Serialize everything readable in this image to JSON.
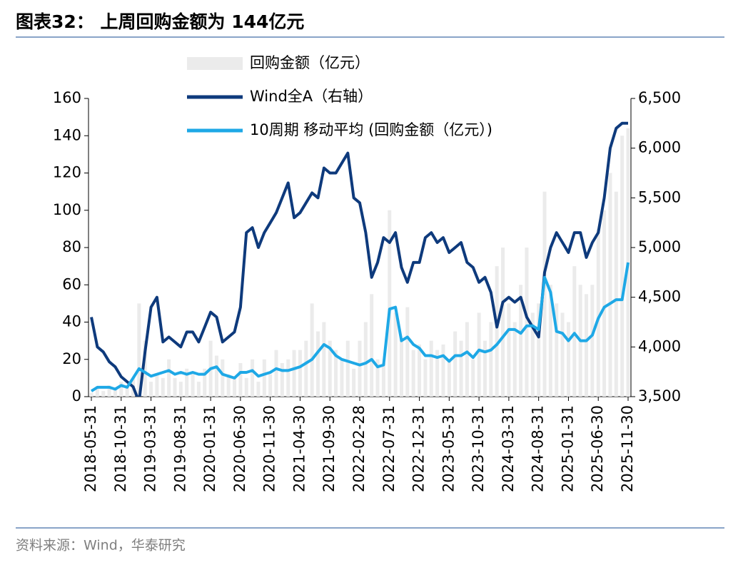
{
  "title": "图表32：  上周回购金额为 144亿元",
  "source": "资料来源：Wind，华泰研究",
  "chart_data": {
    "type": "combo",
    "categories": [
      "2018-05-31",
      null,
      null,
      null,
      null,
      "2018-10-31",
      null,
      null,
      null,
      null,
      "2019-03-31",
      null,
      null,
      null,
      null,
      "2019-08-31",
      null,
      null,
      null,
      null,
      "2020-01-31",
      null,
      null,
      null,
      null,
      "2020-06-30",
      null,
      null,
      null,
      null,
      "2020-11-30",
      null,
      null,
      null,
      null,
      "2021-04-30",
      null,
      null,
      null,
      null,
      "2021-09-30",
      null,
      null,
      null,
      null,
      "2022-02-28",
      null,
      null,
      null,
      null,
      "2022-07-31",
      null,
      null,
      null,
      null,
      "2022-12-31",
      null,
      null,
      null,
      null,
      "2023-05-31",
      null,
      null,
      null,
      null,
      "2023-10-31",
      null,
      null,
      null,
      null,
      "2024-03-31",
      null,
      null,
      null,
      null,
      "2024-08-31",
      null,
      null,
      null,
      null,
      "2025-01-31",
      null,
      null,
      null,
      null,
      "2025-06-30",
      null,
      null,
      null,
      null,
      "2025-11-30"
    ],
    "series": [
      {
        "name": "回购金额（亿元）",
        "type": "bar",
        "color": "#ebebeb",
        "axis": "y",
        "values": [
          2,
          5,
          3,
          6,
          4,
          8,
          6,
          10,
          50,
          30,
          8,
          12,
          10,
          20,
          10,
          8,
          15,
          12,
          8,
          15,
          30,
          22,
          20,
          12,
          10,
          18,
          10,
          20,
          8,
          20,
          12,
          25,
          18,
          20,
          25,
          25,
          30,
          50,
          35,
          40,
          30,
          25,
          20,
          30,
          15,
          30,
          40,
          55,
          20,
          18,
          100,
          45,
          30,
          48,
          25,
          28,
          20,
          30,
          25,
          28,
          20,
          35,
          30,
          40,
          20,
          45,
          30,
          40,
          70,
          80,
          50,
          40,
          60,
          80,
          45,
          50,
          110,
          60,
          50,
          45,
          40,
          70,
          60,
          55,
          60,
          90,
          100,
          120,
          110,
          140,
          144
        ]
      },
      {
        "name": "Wind全A（右轴）",
        "type": "line",
        "color": "#0e3a7c",
        "axis": "y2",
        "values": [
          4300,
          4000,
          3950,
          3850,
          3800,
          3700,
          3650,
          3600,
          3450,
          3950,
          4400,
          4500,
          4050,
          4100,
          4050,
          4000,
          4150,
          4150,
          4050,
          4200,
          4350,
          4300,
          4050,
          4100,
          4150,
          4400,
          5150,
          5200,
          5000,
          5150,
          5250,
          5350,
          5500,
          5650,
          5300,
          5350,
          5450,
          5550,
          5500,
          5800,
          5750,
          5750,
          5850,
          5950,
          5500,
          5450,
          5150,
          4700,
          4850,
          5100,
          5050,
          5150,
          4800,
          4650,
          4850,
          4850,
          5100,
          5150,
          5050,
          5100,
          4950,
          5000,
          5050,
          4850,
          4800,
          4650,
          4700,
          4550,
          4200,
          4450,
          4500,
          4450,
          4500,
          4300,
          4200,
          4100,
          4750,
          5000,
          5150,
          5050,
          4950,
          5150,
          5150,
          4900,
          5050,
          5150,
          5500,
          6000,
          6200,
          6250,
          6250
        ]
      },
      {
        "name": "10周期 移动平均 (回购金额（亿元）)",
        "type": "line",
        "color": "#1ea8e6",
        "axis": "y",
        "values": [
          3,
          5,
          5,
          5,
          4,
          6,
          5,
          10,
          15,
          13,
          11,
          12,
          13,
          14,
          12,
          13,
          12,
          13,
          12,
          12,
          15,
          16,
          12,
          11,
          10,
          13,
          13,
          14,
          11,
          12,
          13,
          15,
          14,
          14,
          15,
          16,
          18,
          20,
          24,
          28,
          26,
          22,
          20,
          19,
          18,
          17,
          18,
          20,
          16,
          17,
          47,
          48,
          30,
          32,
          28,
          26,
          22,
          22,
          21,
          22,
          19,
          22,
          22,
          24,
          21,
          25,
          24,
          25,
          28,
          32,
          36,
          36,
          34,
          38,
          38,
          36,
          64,
          56,
          35,
          34,
          30,
          34,
          30,
          30,
          33,
          42,
          48,
          50,
          52,
          52,
          72
        ]
      }
    ],
    "ylim": [
      0,
      160
    ],
    "yticks": [
      0,
      20,
      40,
      60,
      80,
      100,
      120,
      140,
      160
    ],
    "y2lim": [
      3500,
      6500
    ],
    "y2ticks": [
      {
        "value": 3500,
        "label": "3,500"
      },
      {
        "value": 4000,
        "label": "4,000"
      },
      {
        "value": 4500,
        "label": "4,500"
      },
      {
        "value": 5000,
        "label": "5,000"
      },
      {
        "value": 5500,
        "label": "5,500"
      },
      {
        "value": 6000,
        "label": "6,000"
      },
      {
        "value": 6500,
        "label": "6,500"
      }
    ]
  }
}
